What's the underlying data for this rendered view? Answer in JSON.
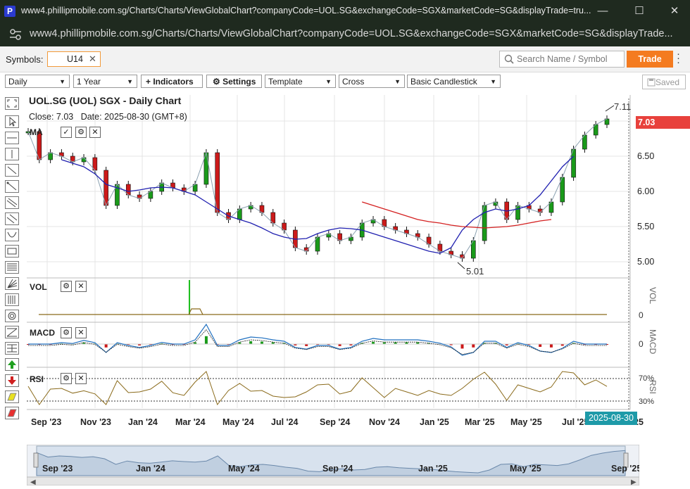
{
  "window": {
    "title": "www4.phillipmobile.com.sg/Charts/Charts/ViewGlobalChart?companyCode=UOL.SG&exchangeCode=SGX&marketCode=SG&displayTrade=tru...",
    "url": "www4.phillipmobile.com.sg/Charts/Charts/ViewGlobalChart?companyCode=UOL.SG&exchangeCode=SGX&marketCode=SG&displayTrade...",
    "app_icon": "P",
    "minimize": "—",
    "maximize": "☐",
    "close": "✕"
  },
  "symbols": {
    "label": "Symbols:",
    "value": "U14",
    "clear": "✕",
    "search_placeholder": "Search Name / Symbol",
    "trade_label": "Trade"
  },
  "toolbar": {
    "interval": "Daily",
    "range": "1 Year",
    "indicators": "+ Indicators",
    "settings": "⚙ Settings",
    "template": "Template",
    "cross": "Cross",
    "chart_type": "Basic Candlestick",
    "saved": "Saved"
  },
  "chart": {
    "title": "UOL.SG (UOL) SGX - Daily Chart",
    "close_label": "Close:",
    "close_value": "7.03",
    "date_label": "Date:",
    "date_value": "2025-08-30",
    "tz": "(GMT+8)",
    "ma_label": "MA",
    "vol_label": "VOL",
    "macd_label": "MACD",
    "rsi_label": "RSI",
    "price_badge": "7.03",
    "date_badge": "2025-08-30",
    "high_annotation": "7.11",
    "low_annotation": "5.01",
    "vol_axis": "VOL",
    "macd_axis": "MACD",
    "rsi_axis": "RSI",
    "vol_zero": "0",
    "macd_zero": "0",
    "rsi_70": "70%",
    "rsi_30": "30%"
  },
  "colors": {
    "ma_blue": "#2020b0",
    "ma_red": "#d42020",
    "ma_gray": "#8aa0b0",
    "up": "#1a9a1a",
    "down": "#cc1a1a",
    "rsi": "#8a6a1a",
    "accent": "#f47b20",
    "badge_red": "#e8413c",
    "badge_teal": "#1e9aa8"
  },
  "chart_data": {
    "type": "line",
    "price_axis": [
      6.5,
      6.0,
      5.5,
      5.0
    ],
    "x_ticks": [
      "Sep '23",
      "Nov '23",
      "Jan '24",
      "Mar '24",
      "May '24",
      "Jul '24",
      "Sep '24",
      "Nov '24",
      "Jan '25",
      "Mar '25",
      "May '25",
      "Jul '25",
      "25"
    ],
    "navigator_ticks": [
      "Sep '23",
      "Jan '24",
      "May '24",
      "Sep '24",
      "Jan '25",
      "May '25",
      "Sep '25"
    ],
    "close_series": [
      6.85,
      6.45,
      6.55,
      6.5,
      6.42,
      6.48,
      6.3,
      5.8,
      6.1,
      5.95,
      5.9,
      6.0,
      6.12,
      6.05,
      6.0,
      6.1,
      6.55,
      5.7,
      5.6,
      5.75,
      5.8,
      5.7,
      5.55,
      5.45,
      5.2,
      5.15,
      5.35,
      5.4,
      5.3,
      5.35,
      5.55,
      5.6,
      5.5,
      5.45,
      5.4,
      5.35,
      5.25,
      5.15,
      5.1,
      5.05,
      5.3,
      5.8,
      5.85,
      5.6,
      5.8,
      5.75,
      5.7,
      5.85,
      6.2,
      6.6,
      6.8,
      6.95,
      7.03
    ],
    "ma_blue": [
      null,
      null,
      null,
      6.45,
      6.4,
      6.35,
      6.25,
      6.1,
      6.05,
      6.0,
      6.02,
      6.05,
      6.06,
      6.05,
      6.0,
      5.95,
      5.85,
      5.75,
      5.65,
      5.6,
      5.55,
      5.48,
      5.4,
      5.35,
      5.32,
      5.33,
      5.4,
      5.45,
      5.48,
      5.47,
      5.45,
      5.4,
      5.35,
      5.3,
      5.25,
      5.2,
      5.15,
      5.12,
      5.2,
      5.45,
      5.6,
      5.7,
      5.75,
      5.72,
      5.75,
      5.8,
      5.95,
      6.15,
      6.35,
      6.5
    ],
    "ma_red": [
      null,
      null,
      null,
      null,
      null,
      null,
      null,
      null,
      null,
      null,
      null,
      null,
      null,
      null,
      null,
      null,
      null,
      null,
      null,
      null,
      null,
      null,
      null,
      null,
      null,
      null,
      null,
      null,
      null,
      null,
      5.85,
      5.8,
      5.75,
      5.7,
      5.65,
      5.6,
      5.57,
      5.55,
      5.52,
      5.5,
      5.49,
      5.48,
      5.49,
      5.5,
      5.52,
      5.55,
      5.58,
      5.6
    ]
  }
}
